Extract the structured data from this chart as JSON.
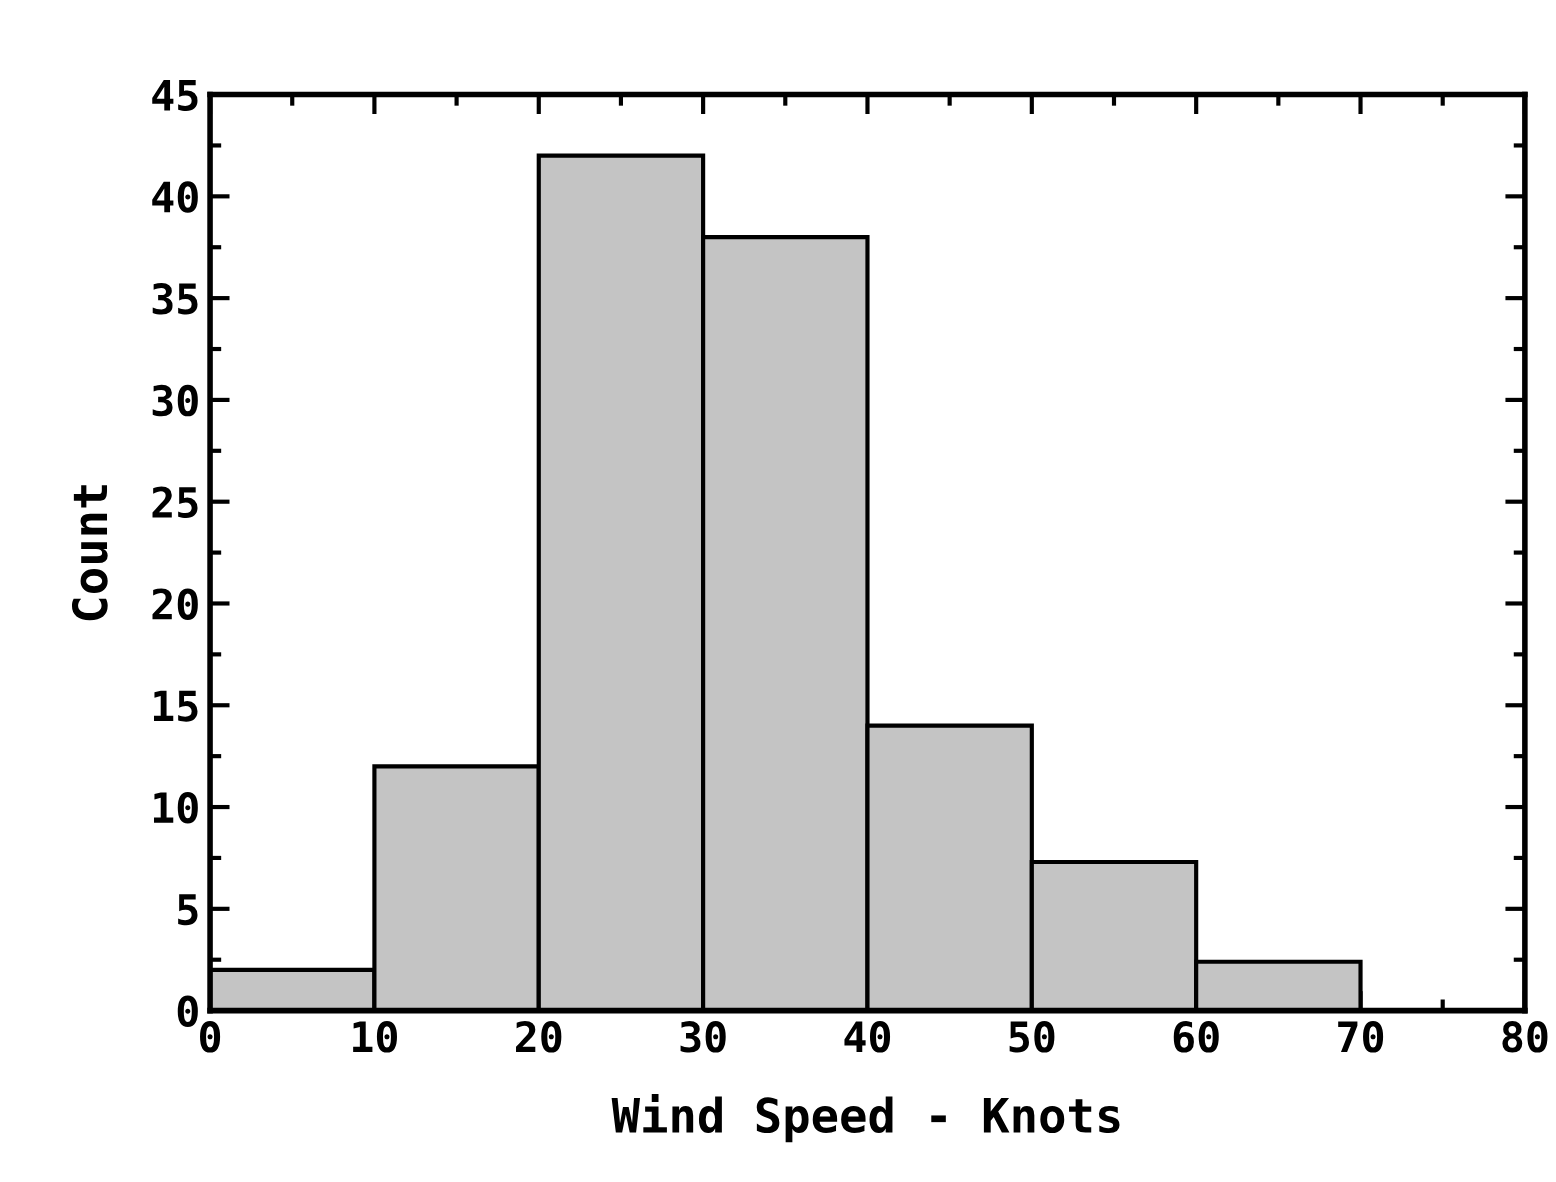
{
  "chart_data": {
    "type": "histogram",
    "xlabel": "Wind Speed - Knots",
    "ylabel": "Count",
    "bins": [
      0,
      10,
      20,
      30,
      40,
      50,
      60,
      70
    ],
    "values": [
      2,
      12,
      42,
      38,
      14,
      7.3,
      2.4
    ],
    "color": "#c4c4c4",
    "xlim": [
      0,
      80
    ],
    "xticks": [
      0,
      10,
      20,
      30,
      40,
      50,
      60,
      70,
      80
    ],
    "ylim": [
      0,
      45
    ],
    "yticks": [
      0,
      5,
      10,
      15,
      20,
      25,
      30,
      35,
      40,
      45
    ],
    "grid": false
  }
}
